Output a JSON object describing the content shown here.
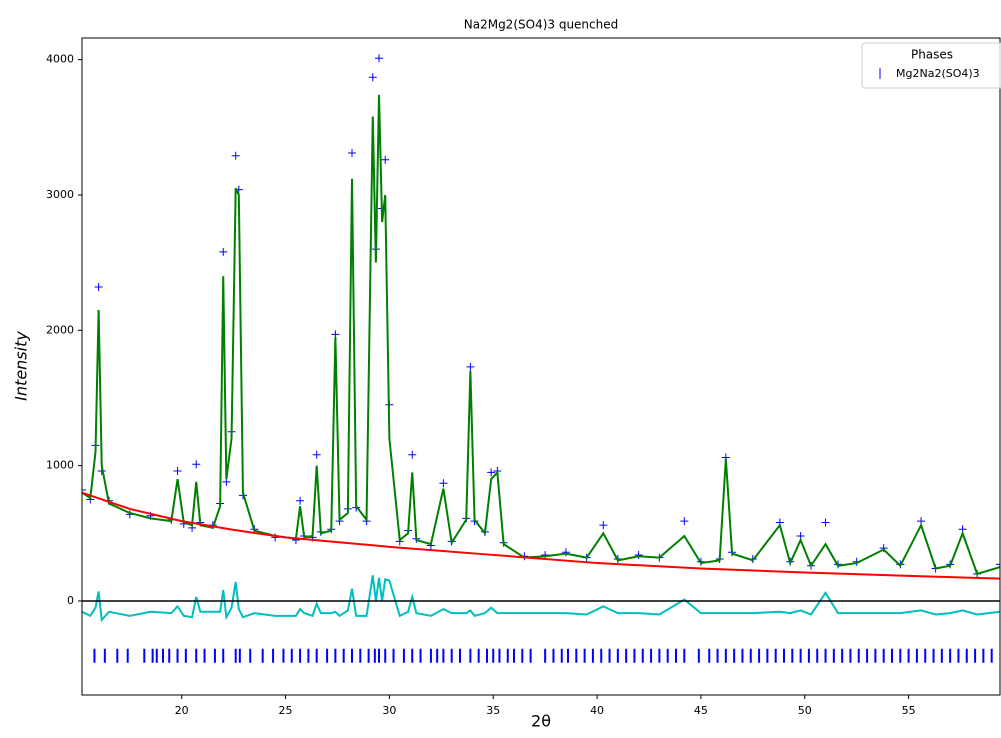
{
  "chart_data": {
    "type": "line",
    "title": "Na2Mg2(SO4)3 quenched",
    "x_label": "2θ",
    "y_label": "Intensity",
    "xlim": [
      15.2,
      59.4
    ],
    "ylim": [
      -695,
      4160
    ],
    "xticks": [
      20,
      25,
      30,
      35,
      40,
      45,
      50,
      55
    ],
    "yticks": [
      0,
      1000,
      2000,
      3000,
      4000
    ],
    "zero_line": true,
    "x": [
      15.2,
      15.6,
      15.85,
      16.0,
      16.15,
      16.5,
      17.5,
      18.5,
      19.5,
      19.8,
      20.1,
      20.5,
      20.7,
      20.9,
      21.5,
      21.85,
      22.0,
      22.15,
      22.4,
      22.6,
      22.75,
      22.95,
      23.5,
      24.5,
      25.5,
      25.7,
      25.9,
      26.3,
      26.5,
      26.7,
      27.2,
      27.4,
      27.6,
      28.0,
      28.2,
      28.4,
      28.9,
      29.2,
      29.35,
      29.5,
      29.65,
      29.8,
      30.0,
      30.5,
      30.9,
      31.1,
      31.3,
      32.0,
      32.6,
      33.0,
      33.7,
      33.9,
      34.1,
      34.6,
      34.9,
      35.2,
      35.5,
      36.5,
      37.5,
      38.5,
      39.5,
      40.3,
      41.0,
      42.0,
      43.0,
      44.2,
      45.0,
      45.9,
      46.2,
      46.5,
      47.5,
      48.8,
      49.3,
      49.8,
      50.3,
      51.0,
      51.6,
      52.5,
      53.8,
      54.6,
      55.6,
      56.3,
      57.0,
      57.6,
      58.3,
      59.4
    ],
    "series": [
      {
        "style": "markers",
        "marker": "+",
        "color": "#0000ff",
        "values": [
          820,
          750,
          1150,
          2320,
          960,
          740,
          640,
          630,
          600,
          960,
          570,
          540,
          1010,
          580,
          560,
          720,
          2580,
          880,
          1250,
          3290,
          3040,
          780,
          530,
          470,
          450,
          740,
          480,
          470,
          1080,
          510,
          530,
          1970,
          590,
          680,
          3310,
          690,
          590,
          3870,
          2600,
          4010,
          2900,
          3260,
          1450,
          440,
          520,
          1080,
          460,
          410,
          870,
          440,
          610,
          1730,
          590,
          510,
          950,
          960,
          430,
          330,
          340,
          360,
          320,
          560,
          310,
          340,
          320,
          590,
          290,
          310,
          1060,
          360,
          310,
          580,
          290,
          480,
          260,
          580,
          270,
          290,
          390,
          270,
          590,
          240,
          270,
          530,
          200,
          270
        ]
      },
      {
        "style": "line",
        "color": "#008000",
        "values": [
          800,
          760,
          1100,
          2150,
          1000,
          720,
          650,
          610,
          590,
          900,
          580,
          560,
          880,
          560,
          540,
          700,
          2400,
          900,
          1200,
          3050,
          3000,
          800,
          520,
          480,
          460,
          700,
          470,
          480,
          1000,
          500,
          520,
          1950,
          600,
          650,
          3120,
          700,
          600,
          3580,
          2500,
          3740,
          2800,
          3000,
          1200,
          450,
          500,
          950,
          450,
          420,
          830,
          430,
          600,
          1700,
          600,
          500,
          900,
          950,
          420,
          320,
          330,
          350,
          320,
          500,
          300,
          330,
          320,
          480,
          280,
          300,
          1050,
          350,
          300,
          560,
          280,
          450,
          260,
          420,
          260,
          280,
          380,
          260,
          560,
          240,
          260,
          500,
          200,
          250
        ]
      },
      {
        "style": "line",
        "color": "#ff0000",
        "x": [
          15.2,
          17.5,
          20,
          22.5,
          25,
          27.5,
          30,
          35,
          40,
          45,
          50,
          55,
          59.4
        ],
        "values": [
          800,
          680,
          590,
          525,
          470,
          435,
          400,
          340,
          280,
          240,
          210,
          185,
          165
        ]
      },
      {
        "style": "line",
        "color": "#00bfbf",
        "values": [
          -80,
          -110,
          -50,
          70,
          -140,
          -80,
          -110,
          -80,
          -90,
          -40,
          -110,
          -120,
          30,
          -80,
          -80,
          -80,
          80,
          -120,
          -50,
          140,
          -60,
          -120,
          -90,
          -110,
          -110,
          -60,
          -90,
          -110,
          -20,
          -90,
          -90,
          -80,
          -110,
          -70,
          90,
          -110,
          -110,
          190,
          0,
          170,
          0,
          160,
          150,
          -110,
          -80,
          30,
          -90,
          -110,
          -60,
          -90,
          -90,
          -70,
          -110,
          -90,
          -50,
          -90,
          -90,
          -90,
          -90,
          -90,
          -100,
          -40,
          -90,
          -90,
          -100,
          10,
          -90,
          -90,
          -90,
          -90,
          -90,
          -80,
          -90,
          -70,
          -100,
          60,
          -90,
          -90,
          -90,
          -90,
          -70,
          -100,
          -90,
          -70,
          -100,
          -80
        ]
      }
    ],
    "reflections": {
      "name": "Mg2Na2(SO4)3",
      "color": "#0000ff",
      "y": -405,
      "x": [
        15.8,
        16.3,
        16.9,
        17.4,
        18.2,
        18.6,
        18.8,
        19.1,
        19.4,
        19.8,
        20.2,
        20.7,
        21.1,
        21.6,
        22.0,
        22.6,
        22.8,
        23.3,
        23.9,
        24.4,
        24.9,
        25.3,
        25.7,
        26.1,
        26.5,
        27.0,
        27.4,
        27.8,
        28.2,
        28.6,
        29.0,
        29.3,
        29.5,
        29.8,
        30.2,
        30.7,
        31.1,
        31.5,
        32.0,
        32.3,
        32.6,
        33.0,
        33.4,
        33.9,
        34.3,
        34.7,
        35.0,
        35.3,
        35.7,
        36.0,
        36.4,
        36.8,
        37.5,
        37.9,
        38.3,
        38.6,
        39.0,
        39.4,
        39.8,
        40.2,
        40.6,
        41.0,
        41.4,
        41.8,
        42.2,
        42.6,
        43.0,
        43.4,
        43.8,
        44.2,
        44.9,
        45.4,
        45.8,
        46.2,
        46.6,
        47.0,
        47.4,
        47.8,
        48.2,
        48.6,
        49.0,
        49.4,
        49.8,
        50.2,
        50.6,
        51.0,
        51.4,
        51.8,
        52.2,
        52.6,
        53.0,
        53.4,
        53.8,
        54.2,
        54.6,
        55.0,
        55.4,
        55.8,
        56.2,
        56.6,
        57.0,
        57.4,
        57.8,
        58.2,
        58.6,
        59.0
      ]
    },
    "legend": {
      "title": "Phases",
      "loc": "upper right"
    }
  }
}
